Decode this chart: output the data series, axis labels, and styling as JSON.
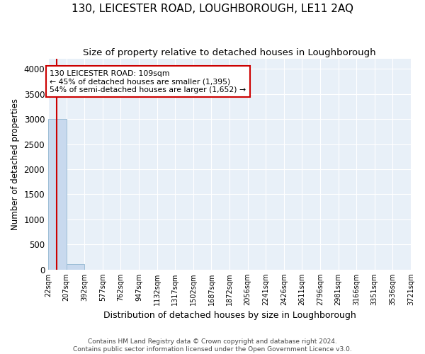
{
  "title": "130, LEICESTER ROAD, LOUGHBOROUGH, LE11 2AQ",
  "subtitle": "Size of property relative to detached houses in Loughborough",
  "xlabel": "Distribution of detached houses by size in Loughborough",
  "ylabel": "Number of detached properties",
  "footer_line1": "Contains HM Land Registry data © Crown copyright and database right 2024.",
  "footer_line2": "Contains public sector information licensed under the Open Government Licence v3.0.",
  "bin_edges": [
    22,
    207,
    392,
    577,
    762,
    947,
    1132,
    1317,
    1502,
    1687,
    1872,
    2056,
    2241,
    2426,
    2611,
    2796,
    2981,
    3166,
    3351,
    3536,
    3721
  ],
  "bar_heights": [
    3000,
    110,
    0,
    0,
    0,
    0,
    0,
    0,
    0,
    0,
    0,
    0,
    0,
    0,
    0,
    0,
    0,
    0,
    0,
    0
  ],
  "bar_color": "#c8d9ee",
  "bar_edge_color": "#9bbdd6",
  "ylim": [
    0,
    4200
  ],
  "yticks": [
    0,
    500,
    1000,
    1500,
    2000,
    2500,
    3000,
    3500,
    4000
  ],
  "property_size": 109,
  "property_line_color": "#cc0000",
  "annotation_text": "130 LEICESTER ROAD: 109sqm\n← 45% of detached houses are smaller (1,395)\n54% of semi-detached houses are larger (1,652) →",
  "annotation_box_color": "#cc0000",
  "background_color": "#e8f0f8",
  "grid_color": "#ffffff",
  "title_fontsize": 11,
  "subtitle_fontsize": 9.5,
  "xlabel_fontsize": 9,
  "ylabel_fontsize": 8.5,
  "tick_label_fontsize": 7,
  "footer_fontsize": 6.5
}
